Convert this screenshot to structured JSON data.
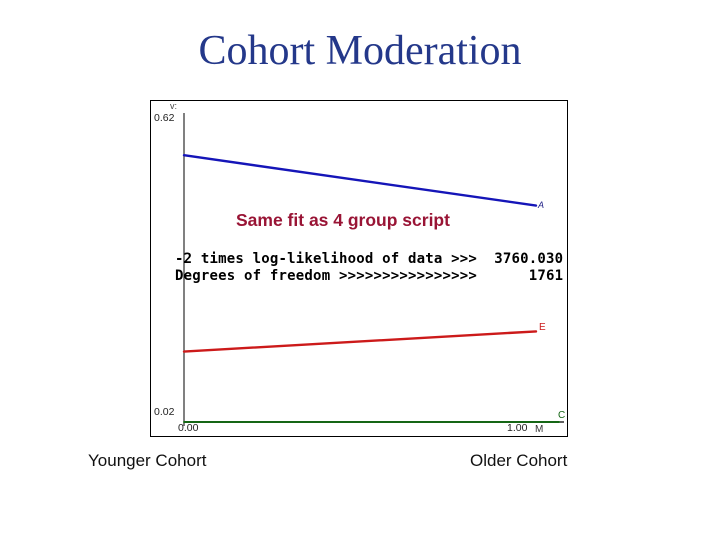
{
  "slide": {
    "title": "Cohort Moderation",
    "footer_left": "Younger Cohort",
    "footer_right": "Older Cohort"
  },
  "chart": {
    "annotation": "Same fit as 4 group script",
    "stats": {
      "line1": "-2 times log-likelihood of data >>>  3760.030",
      "line2": "Degrees of freedom >>>>>>>>>>>>>>>>      1761"
    },
    "y_axis": {
      "title": "v:",
      "top_label": "0.62",
      "bottom_label": "0.02"
    },
    "x_axis": {
      "left_label": "0.00",
      "right_label": "1.00",
      "title": "M"
    }
  },
  "colors": {
    "title_blue": "#24388a",
    "annotation_red": "#991435",
    "line_a_blue": "#1515b8",
    "line_e_red": "#cc1a1a",
    "line_c_green": "#156615",
    "axis_black": "#000000"
  },
  "chart_data": {
    "type": "line",
    "title": "",
    "xlabel": "M",
    "ylabel": "v:",
    "x": [
      0,
      1
    ],
    "xlim": [
      0,
      1
    ],
    "ylim": [
      0.02,
      0.62
    ],
    "x_tick_labels": [
      "0.00",
      "1.00"
    ],
    "y_tick_labels": [
      "0.02",
      "0.62"
    ],
    "grid": false,
    "legend_position": "line-end-labels",
    "series": [
      {
        "name": "A",
        "values": [
          0.55,
          0.45
        ],
        "color": "#1515b8",
        "width": 2.4
      },
      {
        "name": "E",
        "values": [
          0.16,
          0.2
        ],
        "color": "#cc1a1a",
        "width": 2.4
      },
      {
        "name": "C",
        "values": [
          0.02,
          0.02
        ],
        "color": "#156615",
        "width": 2,
        "extend_to_edge": true
      }
    ],
    "annotations": [
      "Same fit as 4 group script",
      "-2 times log-likelihood of data >>>  3760.030",
      "Degrees of freedom >>>>>>>>>>>>>>>>      1761"
    ]
  }
}
